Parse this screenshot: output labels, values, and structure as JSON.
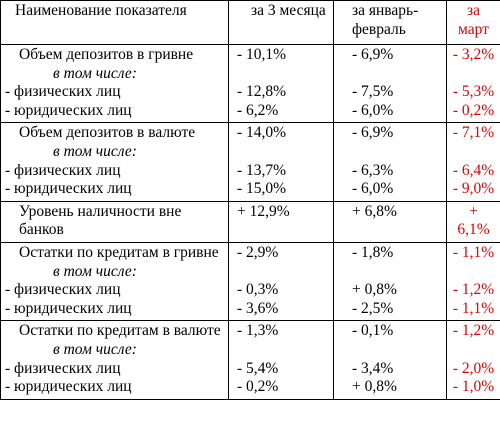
{
  "header": [
    "Наименование показателя",
    "за 3 месяца",
    "за январь-февраль",
    "за март"
  ],
  "groups": [
    {
      "title": "Объем депозитов в гривне",
      "note": "в том числе:",
      "items": [
        "- физических лиц",
        "- юридических лиц"
      ],
      "values": [
        [
          "- 10,1%",
          "- 12,8%",
          "- 6,2%"
        ],
        [
          "- 6,9%",
          "- 7,5%",
          "- 6,0%"
        ],
        [
          "- 3,2%",
          "- 5,3%",
          "- 0,2%"
        ]
      ]
    },
    {
      "title": "Объем депозитов в валюте",
      "note": "в том числе:",
      "items": [
        "- физических лиц",
        "- юридических лиц"
      ],
      "values": [
        [
          "- 14,0%",
          "- 13,7%",
          "- 15,0%"
        ],
        [
          "- 6,9%",
          "- 6,3%",
          "- 6,0%"
        ],
        [
          "- 7,1%",
          "- 6,4%",
          "- 9,0%"
        ]
      ]
    },
    {
      "title": "Уровень наличности вне банков",
      "values": [
        [
          "+ 12,9%"
        ],
        [
          "+ 6,8%"
        ],
        [
          "+",
          "6,1%"
        ]
      ]
    },
    {
      "title": "Остатки по кредитам в гривне",
      "note": "в том числе:",
      "items": [
        "- физических лиц",
        "- юридических лиц"
      ],
      "values": [
        [
          "- 2,9%",
          "- 0,3%",
          "- 3,6%"
        ],
        [
          "- 1,8%",
          "+ 0,8%",
          "- 2,5%"
        ],
        [
          "- 1,1%",
          "- 1,2%",
          "- 1,1%"
        ]
      ]
    },
    {
      "title": "Остатки по кредитам в валюте",
      "note": "в том числе:",
      "items": [
        "- физических лиц",
        "- юридических лиц"
      ],
      "values": [
        [
          "- 1,3%",
          "- 5,4%",
          "- 0,2%"
        ],
        [
          "- 0,1%",
          "- 3,4%",
          "+ 0,8%"
        ],
        [
          "- 1,2%",
          "- 2,0%",
          "- 1,0%"
        ]
      ]
    }
  ]
}
